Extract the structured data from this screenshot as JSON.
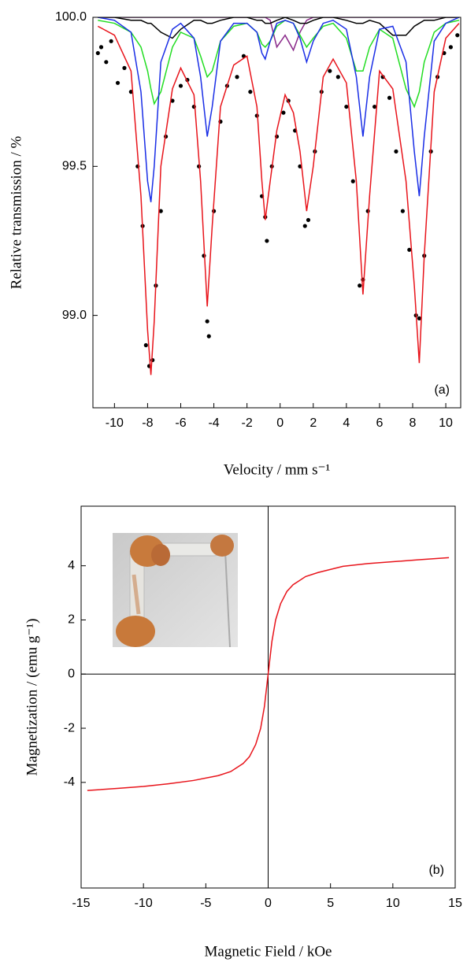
{
  "chart_data": [
    {
      "type": "scatter",
      "x_label": "Velocity / mm s⁻¹",
      "y_label": "Relative transmission / %",
      "annotation": "(a)",
      "xlim": [
        -11.3,
        10.9
      ],
      "ylim": [
        98.69,
        100.0
      ],
      "xticks": [
        -10,
        -8,
        -6,
        -4,
        -2,
        0,
        2,
        4,
        6,
        8,
        10
      ],
      "yticks": [
        {
          "value": 99,
          "label": "99.0"
        },
        99.5,
        {
          "value": 100,
          "label": "100.0"
        }
      ],
      "x": [
        -11,
        -10,
        -9,
        -8.4,
        -8,
        -7.8,
        -7.6,
        -7.2,
        -6.5,
        -6,
        -5.2,
        -4.8,
        -4.4,
        -4.1,
        -3.6,
        -2.8,
        -2,
        -1.4,
        -1.1,
        -0.9,
        -0.6,
        -0.2,
        0.3,
        0.8,
        1.2,
        1.6,
        2.0,
        2.6,
        3.2,
        4.0,
        4.6,
        5.0,
        5.4,
        6.0,
        6.8,
        7.6,
        8.1,
        8.4,
        8.7,
        9.3,
        10,
        10.8
      ],
      "series": [
        {
          "style": "line",
          "color": "#8a2a8a",
          "values": [
            100,
            100,
            100,
            100,
            100,
            100,
            100,
            100,
            100,
            100,
            100,
            100,
            100,
            100,
            100,
            100,
            100,
            100,
            100,
            100,
            99.99,
            99.9,
            99.94,
            99.89,
            99.95,
            99.99,
            100,
            100,
            100,
            100,
            100,
            100,
            100,
            100,
            100,
            100,
            100,
            100,
            100,
            100,
            100,
            100
          ]
        },
        {
          "style": "line",
          "color": "#000000",
          "values": [
            100,
            100,
            99.99,
            99.99,
            99.98,
            99.98,
            99.97,
            99.95,
            99.93,
            99.96,
            99.99,
            99.99,
            99.98,
            99.98,
            99.99,
            100,
            100,
            99.99,
            99.99,
            99.98,
            99.98,
            99.99,
            100,
            99.99,
            99.98,
            99.98,
            99.99,
            100,
            100,
            99.99,
            99.98,
            99.98,
            99.99,
            99.98,
            99.94,
            99.94,
            99.97,
            99.98,
            99.99,
            99.99,
            100,
            100
          ]
        },
        {
          "style": "line",
          "color": "#22dd22",
          "values": [
            99.99,
            99.98,
            99.95,
            99.9,
            99.82,
            99.76,
            99.71,
            99.75,
            99.9,
            99.95,
            99.93,
            99.87,
            99.8,
            99.82,
            99.92,
            99.97,
            99.98,
            99.95,
            99.91,
            99.9,
            99.92,
            99.97,
            99.99,
            99.98,
            99.94,
            99.9,
            99.93,
            99.97,
            99.98,
            99.93,
            99.82,
            99.82,
            99.9,
            99.96,
            99.93,
            99.76,
            99.7,
            99.75,
            99.85,
            99.95,
            99.98,
            99.99
          ]
        },
        {
          "style": "line",
          "color": "#1a2ee6",
          "values": [
            100,
            99.99,
            99.95,
            99.75,
            99.45,
            99.38,
            99.5,
            99.85,
            99.96,
            99.98,
            99.93,
            99.8,
            99.6,
            99.7,
            99.92,
            99.98,
            99.98,
            99.95,
            99.88,
            99.86,
            99.92,
            99.98,
            99.99,
            99.98,
            99.93,
            99.85,
            99.92,
            99.98,
            99.99,
            99.96,
            99.8,
            99.6,
            99.8,
            99.96,
            99.97,
            99.85,
            99.55,
            99.4,
            99.6,
            99.92,
            99.98,
            100
          ]
        },
        {
          "style": "points",
          "color": "#000000",
          "x": [
            -11,
            -10.8,
            -10.5,
            -10.2,
            -9.8,
            -9.4,
            -9,
            -8.6,
            -8.3,
            -8.1,
            -7.9,
            -7.7,
            -7.5,
            -7.2,
            -6.9,
            -6.5,
            -6,
            -5.6,
            -5.2,
            -4.9,
            -4.6,
            -4.4,
            -4.3,
            -4.0,
            -3.6,
            -3.2,
            -2.6,
            -2.2,
            -1.8,
            -1.4,
            -1.1,
            -0.9,
            -0.8,
            -0.5,
            -0.2,
            0.2,
            0.5,
            0.9,
            1.2,
            1.5,
            1.7,
            2.1,
            2.5,
            3.0,
            3.5,
            4.0,
            4.4,
            4.8,
            5.0,
            5.3,
            5.7,
            6.2,
            6.6,
            7.0,
            7.4,
            7.8,
            8.2,
            8.4,
            8.7,
            9.1,
            9.5,
            9.9,
            10.3,
            10.7
          ],
          "values": [
            99.88,
            99.9,
            99.85,
            99.92,
            99.78,
            99.83,
            99.75,
            99.5,
            99.3,
            98.9,
            98.83,
            98.85,
            99.1,
            99.35,
            99.6,
            99.72,
            99.77,
            99.79,
            99.7,
            99.5,
            99.2,
            98.98,
            98.93,
            99.35,
            99.65,
            99.77,
            99.8,
            99.87,
            99.75,
            99.67,
            99.4,
            99.33,
            99.25,
            99.5,
            99.6,
            99.68,
            99.72,
            99.62,
            99.5,
            99.3,
            99.32,
            99.55,
            99.75,
            99.82,
            99.8,
            99.7,
            99.45,
            99.1,
            99.12,
            99.35,
            99.7,
            99.8,
            99.73,
            99.55,
            99.35,
            99.22,
            99.0,
            98.99,
            99.2,
            99.55,
            99.8,
            99.88,
            99.9,
            99.94
          ]
        },
        {
          "style": "line",
          "color": "#e8141b",
          "values": [
            99.97,
            99.94,
            99.82,
            99.4,
            98.95,
            98.8,
            98.98,
            99.5,
            99.76,
            99.83,
            99.74,
            99.45,
            99.03,
            99.3,
            99.7,
            99.84,
            99.87,
            99.7,
            99.45,
            99.32,
            99.45,
            99.62,
            99.74,
            99.68,
            99.55,
            99.35,
            99.5,
            99.8,
            99.86,
            99.78,
            99.45,
            99.07,
            99.4,
            99.82,
            99.76,
            99.45,
            99.1,
            98.84,
            99.2,
            99.75,
            99.93,
            99.98
          ]
        }
      ]
    },
    {
      "type": "line",
      "x_label": "Magnetic Field / kOe",
      "y_label": "Magnetization / (emu g⁻¹)",
      "annotation": "(b)",
      "xlim": [
        -15,
        15
      ],
      "ylim": [
        -7.9,
        6.2
      ],
      "xticks": [
        -15,
        -10,
        -5,
        0,
        5,
        10,
        15
      ],
      "yticks": [
        -4,
        -2,
        0,
        2,
        4
      ],
      "zero_lines": true,
      "x": [
        -14.5,
        -12,
        -10,
        -8,
        -6,
        -4,
        -3,
        -2,
        -1.5,
        -1,
        -0.6,
        -0.3,
        0,
        0.3,
        0.6,
        1,
        1.5,
        2,
        3,
        4,
        6,
        8,
        10,
        12,
        14.5
      ],
      "series": [
        {
          "style": "line",
          "color": "#e8141b",
          "values": [
            -4.3,
            -4.22,
            -4.15,
            -4.05,
            -3.93,
            -3.75,
            -3.6,
            -3.3,
            -3.05,
            -2.6,
            -2.0,
            -1.2,
            0,
            1.2,
            2.0,
            2.6,
            3.05,
            3.3,
            3.6,
            3.75,
            3.98,
            4.08,
            4.15,
            4.22,
            4.3
          ]
        }
      ]
    }
  ]
}
